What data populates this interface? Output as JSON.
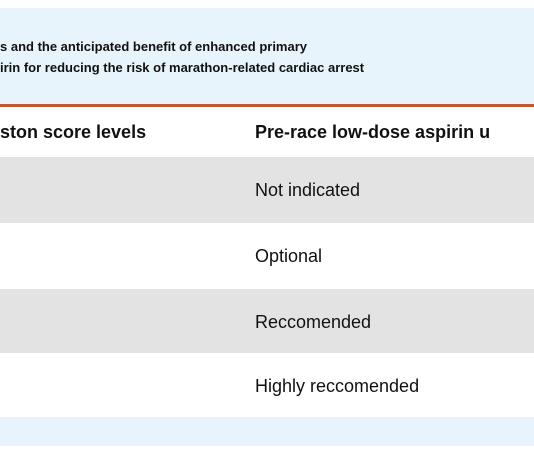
{
  "caption": {
    "line1": "s and the anticipated benefit of enhanced primary",
    "line2": "irin for reducing the risk of marathon-related cardiac arrest"
  },
  "table": {
    "headers": [
      "ston score levels",
      "Pre-race low-dose aspirin u"
    ],
    "rows": [
      {
        "col1": "",
        "col2": "Not indicated"
      },
      {
        "col1": "",
        "col2": "Optional"
      },
      {
        "col1": "",
        "col2": "Reccomended"
      },
      {
        "col1": "",
        "col2": "Highly reccomended"
      }
    ]
  },
  "colors": {
    "caption_background": "#e8f4fb",
    "header_rule": "#c1592a",
    "row_shade": "#e3e3e3",
    "text": "#111111"
  }
}
